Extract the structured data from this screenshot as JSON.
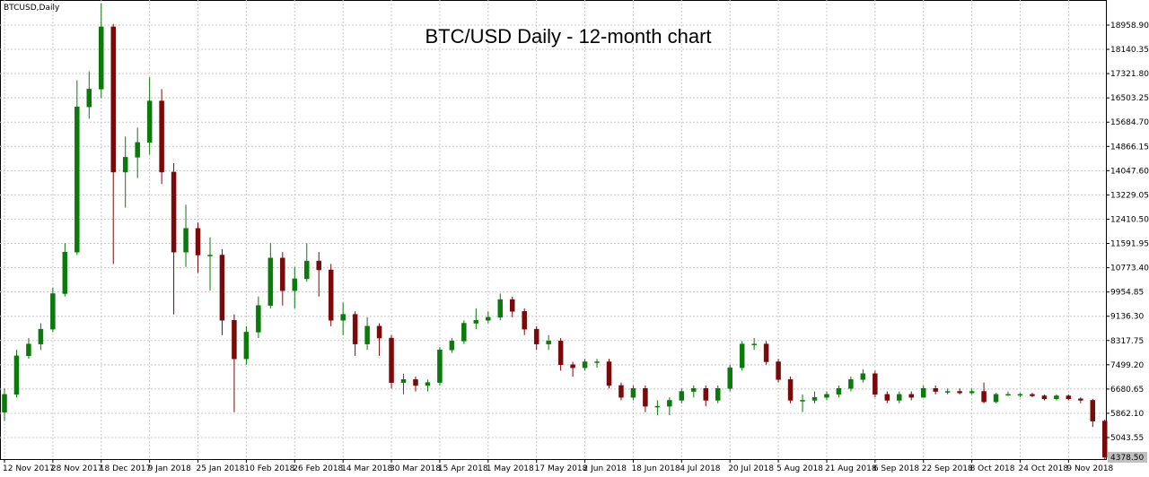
{
  "chart_data": {
    "type": "candlestick",
    "symbol_label": "BTCUSD,Daily",
    "title": "BTC/USD Daily - 12-month chart",
    "bull_color": "#0a7a0a",
    "bear_color": "#7a0a0a",
    "grid": true,
    "ylim": [
      4317.5,
      19805.9
    ],
    "yticks": [
      {
        "value": 5043.55,
        "label": "5043.55"
      },
      {
        "value": 5862.1,
        "label": "5862.10"
      },
      {
        "value": 6680.65,
        "label": "6680.65"
      },
      {
        "value": 7499.2,
        "label": "7499.20"
      },
      {
        "value": 8317.75,
        "label": "8317.75"
      },
      {
        "value": 9136.3,
        "label": "9136.30"
      },
      {
        "value": 9954.85,
        "label": "9954.85"
      },
      {
        "value": 10773.4,
        "label": "10773.40"
      },
      {
        "value": 11591.95,
        "label": "11591.95"
      },
      {
        "value": 12410.5,
        "label": "12410.50"
      },
      {
        "value": 13229.05,
        "label": "13229.05"
      },
      {
        "value": 14047.6,
        "label": "14047.60"
      },
      {
        "value": 14866.15,
        "label": "14866.15"
      },
      {
        "value": 15684.7,
        "label": "15684.70"
      },
      {
        "value": 16503.25,
        "label": "16503.25"
      },
      {
        "value": 17321.8,
        "label": "17321.80"
      },
      {
        "value": 18140.35,
        "label": "18140.35"
      },
      {
        "value": 18958.9,
        "label": "18958.90"
      }
    ],
    "last_price": {
      "value": 4378.5,
      "label": "4378.50"
    },
    "xticks": [
      "12 Nov 2017",
      "28 Nov 2017",
      "18 Dec 2017",
      "9 Jan 2018",
      "25 Jan 2018",
      "10 Feb 2018",
      "26 Feb 2018",
      "14 Mar 2018",
      "30 Mar 2018",
      "15 Apr 2018",
      "1 May 2018",
      "17 May 2018",
      "2 Jun 2018",
      "18 Jun 2018",
      "4 Jul 2018",
      "20 Jul 2018",
      "5 Aug 2018",
      "21 Aug 2018",
      "6 Sep 2018",
      "22 Sep 2018",
      "8 Oct 2018",
      "24 Oct 2018",
      "9 Nov 2018"
    ],
    "x": [
      "12 Nov 2017",
      "16 Nov 2017",
      "20 Nov 2017",
      "24 Nov 2017",
      "28 Nov 2017",
      "3 Dec 2017",
      "8 Dec 2017",
      "13 Dec 2017",
      "18 Dec 2017",
      "23 Dec 2017",
      "29 Dec 2017",
      "3 Jan 2018",
      "9 Jan 2018",
      "13 Jan 2018",
      "17 Jan 2018",
      "21 Jan 2018",
      "25 Jan 2018",
      "29 Jan 2018",
      "2 Feb 2018",
      "6 Feb 2018",
      "10 Feb 2018",
      "14 Feb 2018",
      "18 Feb 2018",
      "22 Feb 2018",
      "26 Feb 2018",
      "2 Mar 2018",
      "6 Mar 2018",
      "10 Mar 2018",
      "14 Mar 2018",
      "18 Mar 2018",
      "22 Mar 2018",
      "26 Mar 2018",
      "30 Mar 2018",
      "3 Apr 2018",
      "7 Apr 2018",
      "11 Apr 2018",
      "15 Apr 2018",
      "19 Apr 2018",
      "23 Apr 2018",
      "27 Apr 2018",
      "1 May 2018",
      "5 May 2018",
      "9 May 2018",
      "13 May 2018",
      "17 May 2018",
      "21 May 2018",
      "25 May 2018",
      "29 May 2018",
      "2 Jun 2018",
      "6 Jun 2018",
      "10 Jun 2018",
      "14 Jun 2018",
      "18 Jun 2018",
      "22 Jun 2018",
      "26 Jun 2018",
      "30 Jun 2018",
      "4 Jul 2018",
      "8 Jul 2018",
      "12 Jul 2018",
      "16 Jul 2018",
      "20 Jul 2018",
      "24 Jul 2018",
      "28 Jul 2018",
      "1 Aug 2018",
      "5 Aug 2018",
      "9 Aug 2018",
      "13 Aug 2018",
      "17 Aug 2018",
      "21 Aug 2018",
      "25 Aug 2018",
      "29 Aug 2018",
      "2 Sep 2018",
      "6 Sep 2018",
      "10 Sep 2018",
      "14 Sep 2018",
      "18 Sep 2018",
      "22 Sep 2018",
      "26 Sep 2018",
      "30 Sep 2018",
      "4 Oct 2018",
      "8 Oct 2018",
      "12 Oct 2018",
      "16 Oct 2018",
      "20 Oct 2018",
      "24 Oct 2018",
      "28 Oct 2018",
      "1 Nov 2018",
      "5 Nov 2018",
      "9 Nov 2018",
      "13 Nov 2018",
      "17 Nov 2018",
      "21 Nov 2018"
    ],
    "open": [
      5900,
      6500,
      7800,
      8200,
      8700,
      9900,
      11300,
      16200,
      16800,
      18900,
      14000,
      14500,
      15000,
      16400,
      14000,
      11300,
      12100,
      11200,
      11200,
      9000,
      7700,
      8600,
      9500,
      11100,
      10000,
      10400,
      11000,
      10700,
      9000,
      9200,
      8200,
      8800,
      8400,
      6900,
      7000,
      6800,
      6900,
      8000,
      8300,
      8900,
      9000,
      9100,
      9700,
      9300,
      8700,
      8200,
      8300,
      7500,
      7400,
      7600,
      7600,
      6800,
      6400,
      6700,
      6100,
      6100,
      6300,
      6600,
      6700,
      6300,
      6700,
      7400,
      8200,
      8200,
      7600,
      7000,
      6300,
      6300,
      6400,
      6500,
      6700,
      7000,
      7200,
      6500,
      6300,
      6500,
      6400,
      6700,
      6600,
      6600,
      6550,
      6600,
      6250,
      6500,
      6500,
      6500,
      6450,
      6350,
      6450,
      6350,
      6300,
      5600
    ],
    "high": [
      6700,
      8000,
      8400,
      8900,
      10100,
      11600,
      17100,
      17400,
      19700,
      19000,
      15200,
      15500,
      17200,
      16800,
      14300,
      12900,
      12300,
      11800,
      11400,
      9200,
      8800,
      9800,
      11600,
      11300,
      10800,
      11600,
      11300,
      10900,
      9600,
      9300,
      9100,
      8900,
      8500,
      7200,
      7100,
      7000,
      8100,
      8400,
      9000,
      9400,
      9300,
      9900,
      9800,
      9400,
      8800,
      8500,
      8400,
      7600,
      7700,
      7700,
      7700,
      6900,
      6800,
      6800,
      6300,
      6400,
      6700,
      6800,
      6800,
      6800,
      7500,
      8300,
      8400,
      8300,
      7700,
      7100,
      6500,
      6600,
      6600,
      6800,
      7100,
      7350,
      7300,
      6600,
      6600,
      6600,
      6800,
      6800,
      6700,
      6700,
      6700,
      6900,
      6550,
      6600,
      6550,
      6550,
      6500,
      6500,
      6500,
      6400,
      6350,
      5650
    ],
    "low": [
      5600,
      6400,
      7700,
      8000,
      8600,
      9800,
      11200,
      15800,
      16500,
      10900,
      12800,
      13800,
      14600,
      13600,
      9200,
      10800,
      10600,
      10000,
      8500,
      5900,
      7500,
      8400,
      9400,
      9500,
      9400,
      10300,
      9800,
      8800,
      8500,
      7800,
      8000,
      7800,
      6700,
      6500,
      6600,
      6600,
      6800,
      7900,
      8200,
      8700,
      8900,
      9000,
      9100,
      8500,
      8000,
      8000,
      7300,
      7100,
      7300,
      7400,
      6700,
      6300,
      6300,
      5900,
      5800,
      5800,
      6200,
      6400,
      6100,
      6200,
      6600,
      7300,
      8000,
      7500,
      6900,
      6200,
      5900,
      6200,
      6300,
      6400,
      6600,
      6900,
      6400,
      6200,
      6200,
      6300,
      6400,
      6500,
      6500,
      6500,
      6500,
      6200,
      6200,
      6450,
      6400,
      6400,
      6300,
      6300,
      6300,
      6200,
      5400,
      4300
    ],
    "close": [
      6500,
      7800,
      8200,
      8700,
      9900,
      11300,
      16200,
      16800,
      18900,
      14000,
      14500,
      15000,
      16400,
      14000,
      11300,
      12100,
      11200,
      11200,
      9000,
      7700,
      8600,
      9500,
      11100,
      10000,
      10400,
      11000,
      10700,
      9000,
      9200,
      8200,
      8800,
      8400,
      6900,
      7000,
      6800,
      6900,
      8000,
      8300,
      8900,
      9000,
      9100,
      9700,
      9300,
      8700,
      8200,
      8300,
      7500,
      7400,
      7600,
      7600,
      6800,
      6400,
      6700,
      6100,
      6100,
      6300,
      6600,
      6700,
      6300,
      6700,
      7400,
      8200,
      8200,
      7600,
      7000,
      6300,
      6300,
      6400,
      6500,
      6700,
      7000,
      7200,
      6500,
      6300,
      6500,
      6400,
      6700,
      6600,
      6600,
      6550,
      6600,
      6250,
      6500,
      6500,
      6500,
      6450,
      6350,
      6450,
      6350,
      6300,
      5600,
      4378.5
    ]
  }
}
